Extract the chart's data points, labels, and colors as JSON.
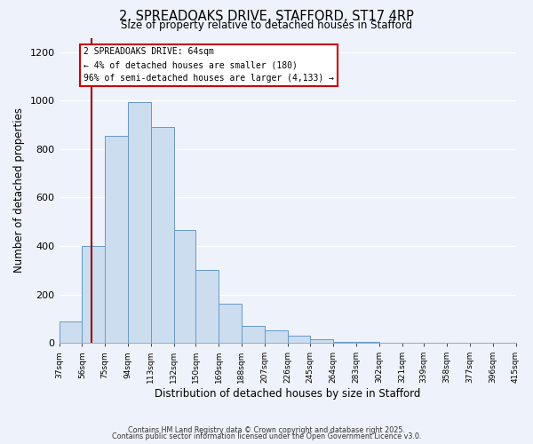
{
  "title": "2, SPREADOAKS DRIVE, STAFFORD, ST17 4RP",
  "subtitle": "Size of property relative to detached houses in Stafford",
  "xlabel": "Distribution of detached houses by size in Stafford",
  "ylabel": "Number of detached properties",
  "bar_color": "#ccddf0",
  "bar_edge_color": "#6699cc",
  "background_color": "#eef2fa",
  "grid_color": "#ffffff",
  "bin_labels": [
    "37sqm",
    "56sqm",
    "75sqm",
    "94sqm",
    "113sqm",
    "132sqm",
    "150sqm",
    "169sqm",
    "188sqm",
    "207sqm",
    "226sqm",
    "245sqm",
    "264sqm",
    "283sqm",
    "302sqm",
    "321sqm",
    "339sqm",
    "358sqm",
    "377sqm",
    "396sqm",
    "415sqm"
  ],
  "bin_edges": [
    37,
    56,
    75,
    94,
    113,
    132,
    150,
    169,
    188,
    207,
    226,
    245,
    264,
    283,
    302,
    321,
    339,
    358,
    377,
    396,
    415
  ],
  "bar_heights": [
    90,
    400,
    855,
    995,
    890,
    465,
    300,
    160,
    70,
    50,
    30,
    15,
    5,
    2,
    1,
    1,
    0,
    0,
    0,
    0
  ],
  "ylim": [
    0,
    1260
  ],
  "yticks": [
    0,
    200,
    400,
    600,
    800,
    1000,
    1200
  ],
  "vline_x": 64,
  "vline_color": "#990000",
  "annotation_text": "2 SPREADOAKS DRIVE: 64sqm\n← 4% of detached houses are smaller (180)\n96% of semi-detached houses are larger (4,133) →",
  "annotation_box_edge": "#cc0000",
  "footnote1": "Contains HM Land Registry data © Crown copyright and database right 2025.",
  "footnote2": "Contains public sector information licensed under the Open Government Licence v3.0."
}
